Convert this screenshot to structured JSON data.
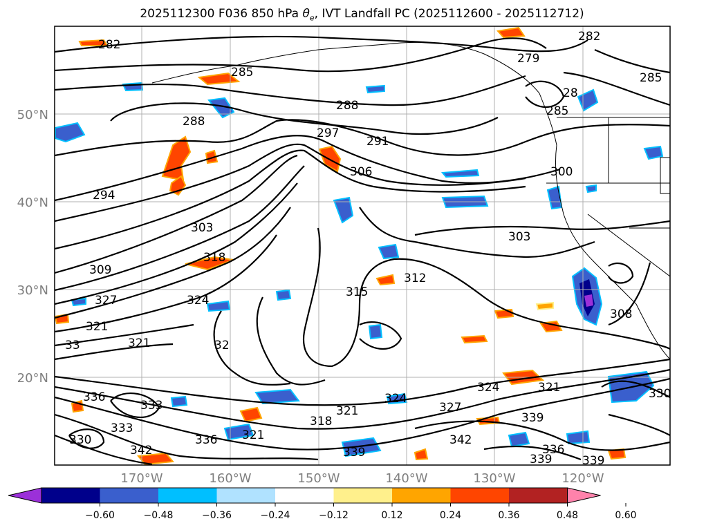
{
  "title_main": "2025112300 F036 850 hPa ",
  "title_theta": "θ",
  "title_sub": "e",
  "title_rest": ", IVT Landfall PC (2025112600 - 2025112712)",
  "lat_labels": [
    "50°N",
    "40°N",
    "30°N",
    "20°N"
  ],
  "lon_labels": [
    "170°W",
    "160°W",
    "150°W",
    "140°W",
    "130°W",
    "120°W"
  ],
  "colorbar": {
    "colors": [
      "#9b30d9",
      "#00008b",
      "#3a5fcd",
      "#00bfff",
      "#b0e2ff",
      "#ffffff",
      "#fff08c",
      "#ffa500",
      "#ff4500",
      "#b22222",
      "#ff82ab"
    ],
    "tick_labels": [
      "−0.60",
      "−0.48",
      "−0.36",
      "−0.24",
      "−0.12",
      "0.12",
      "0.24",
      "0.36",
      "0.48",
      "0.60"
    ]
  },
  "contour_labels": [
    "282",
    "282",
    "279",
    "285",
    "285",
    "288",
    "288",
    "28",
    "285",
    "297",
    "291",
    "306",
    "300",
    "294",
    "303",
    "303",
    "318",
    "309",
    "315",
    "312",
    "327",
    "324",
    "321",
    "321",
    "32",
    "308",
    "324",
    "321",
    "33",
    "336",
    "333",
    "333",
    "321",
    "324",
    "327",
    "321",
    "330",
    "318",
    "339",
    "336",
    "330",
    "342",
    "336",
    "339",
    "342",
    "339",
    "339"
  ]
}
